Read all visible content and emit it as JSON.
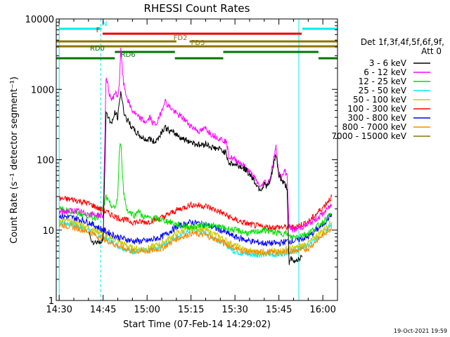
{
  "chart_data": {
    "type": "line",
    "title": "RHESSI Count Rates",
    "xlabel": "Start Time (07-Feb-14 14:29:02)",
    "ylabel": "Count Rate (s⁻¹ detector segment⁻¹)",
    "yscale": "log",
    "ylim": [
      1,
      10000
    ],
    "xlim_minutes": [
      -1,
      95
    ],
    "x_ticks": [
      {
        "label": "14:30",
        "minute": 0
      },
      {
        "label": "14:45",
        "minute": 15
      },
      {
        "label": "15:00",
        "minute": 30
      },
      {
        "label": "15:15",
        "minute": 45
      },
      {
        "label": "15:30",
        "minute": 60
      },
      {
        "label": "15:45",
        "minute": 75
      },
      {
        "label": "16:00",
        "minute": 90
      }
    ],
    "y_ticks": [
      {
        "label": "1",
        "value": 1
      },
      {
        "label": "10",
        "value": 10
      },
      {
        "label": "100",
        "value": 100
      },
      {
        "label": "1000",
        "value": 1000
      },
      {
        "label": "10000",
        "value": 10000
      }
    ],
    "legend_title_1": "Det 1f,3f,4f,5f,6f,9f,",
    "legend_title_2": "Att 0",
    "series": [
      {
        "name": "3 - 6 keV",
        "color": "#000000",
        "minutes": [
          10.3,
          11,
          12,
          13,
          14,
          15,
          15.6,
          16,
          17,
          18,
          19,
          20,
          20.5,
          21,
          22,
          23,
          24,
          25,
          26,
          27,
          28,
          29,
          30,
          31,
          32,
          33,
          34,
          35,
          36,
          37,
          38,
          40,
          42,
          45,
          48,
          50,
          52,
          55,
          57,
          58,
          60,
          62,
          64,
          66,
          68,
          69,
          70,
          71,
          72,
          74,
          75,
          76,
          77,
          77.8,
          78.5,
          79,
          80,
          81,
          82,
          83
        ],
        "values": [
          9,
          7.5,
          6.5,
          7,
          6.5,
          8,
          80,
          500,
          380,
          320,
          470,
          400,
          600,
          950,
          500,
          380,
          330,
          280,
          250,
          230,
          210,
          200,
          190,
          200,
          180,
          185,
          210,
          250,
          290,
          270,
          250,
          230,
          200,
          180,
          160,
          170,
          150,
          140,
          125,
          90,
          85,
          80,
          70,
          55,
          40,
          38,
          45,
          42,
          48,
          120,
          60,
          50,
          45,
          40,
          3,
          4,
          3.5,
          3.8,
          4,
          4.2
        ]
      },
      {
        "name": "6 - 12 keV",
        "color": "#ff00ff",
        "minutes": [
          0,
          5,
          10,
          15,
          15.6,
          16,
          17,
          18,
          19,
          20,
          20.5,
          21,
          22,
          23,
          24,
          25,
          26,
          27,
          28,
          29,
          30,
          31,
          32,
          33,
          34,
          35,
          36,
          37,
          38,
          40,
          42,
          45,
          48,
          50,
          52,
          55,
          57,
          58,
          60,
          62,
          64,
          66,
          68,
          69,
          70,
          71,
          72,
          74,
          75,
          76,
          77,
          77.8,
          78.5,
          80,
          85,
          90,
          93
        ],
        "values": [
          18,
          19,
          17,
          16,
          200,
          1500,
          900,
          700,
          900,
          800,
          1200,
          3500,
          1200,
          800,
          600,
          500,
          450,
          400,
          380,
          350,
          350,
          400,
          330,
          320,
          380,
          500,
          700,
          600,
          550,
          450,
          400,
          300,
          250,
          280,
          230,
          200,
          180,
          110,
          100,
          90,
          75,
          60,
          45,
          40,
          50,
          45,
          55,
          150,
          65,
          55,
          70,
          60,
          11,
          10,
          12,
          17,
          23
        ]
      },
      {
        "name": "12 - 25 keV",
        "color": "#00dd00",
        "minutes": [
          0,
          5,
          10,
          12,
          14,
          15.6,
          16,
          17,
          18,
          19,
          20,
          20.5,
          21,
          22,
          23,
          24,
          25,
          26,
          27,
          28,
          30,
          32,
          35,
          38,
          40,
          45,
          50,
          55,
          60,
          65,
          70,
          75,
          77.8,
          78.5,
          80,
          85,
          90,
          93
        ],
        "values": [
          20,
          18,
          16,
          15,
          16,
          25,
          30,
          24,
          22,
          20,
          30,
          120,
          180,
          35,
          20,
          18,
          17,
          16,
          20,
          16,
          15,
          15,
          14,
          13,
          12,
          11,
          12,
          11,
          10,
          9,
          10,
          9,
          9,
          8,
          8,
          9,
          13,
          17
        ]
      },
      {
        "name": "25 - 50 keV",
        "color": "#00eeee",
        "minutes": [
          0,
          5,
          10,
          15,
          20,
          25,
          30,
          35,
          40,
          45,
          50,
          55,
          60,
          65,
          70,
          75,
          78,
          80,
          85,
          90,
          93
        ],
        "values": [
          13,
          12,
          10,
          8,
          6,
          5,
          5,
          6,
          8,
          10,
          9,
          7,
          5,
          4.5,
          4.5,
          4.5,
          5,
          5,
          6,
          9,
          12
        ]
      },
      {
        "name": "50 - 100 keV",
        "color": "#cccc00",
        "minutes": [
          0,
          5,
          10,
          15,
          20,
          25,
          30,
          35,
          40,
          45,
          50,
          55,
          60,
          65,
          70,
          75,
          78,
          80,
          85,
          90,
          93
        ],
        "values": [
          14,
          13,
          11,
          9,
          7,
          5.5,
          5.5,
          6.5,
          9,
          11,
          10,
          8,
          6,
          5,
          5,
          5,
          5.5,
          5.5,
          6.5,
          10,
          13
        ]
      },
      {
        "name": "100 - 300 keV",
        "color": "#ff0000",
        "minutes": [
          0,
          5,
          10,
          15,
          20,
          25,
          30,
          35,
          40,
          45,
          50,
          55,
          60,
          65,
          70,
          75,
          78,
          80,
          85,
          90,
          93
        ],
        "values": [
          28,
          27,
          24,
          19,
          15,
          13,
          13,
          15,
          19,
          23,
          22,
          18,
          14,
          12,
          11,
          11,
          11,
          11,
          13,
          21,
          30
        ]
      },
      {
        "name": "300 - 800 keV",
        "color": "#0000ff",
        "minutes": [
          0,
          5,
          10,
          15,
          20,
          25,
          30,
          35,
          40,
          45,
          50,
          55,
          60,
          65,
          70,
          75,
          78,
          80,
          85,
          90,
          93
        ],
        "values": [
          16,
          15,
          13,
          10,
          8,
          7,
          7,
          8,
          11,
          13,
          12,
          10,
          8,
          7,
          6.5,
          6.5,
          7,
          7,
          8,
          12,
          17
        ]
      },
      {
        "name": "800 - 7000 keV",
        "color": "#ff8800",
        "minutes": [
          0,
          5,
          10,
          15,
          20,
          25,
          30,
          35,
          40,
          45,
          50,
          55,
          60,
          65,
          70,
          75,
          78,
          80,
          85,
          90,
          93
        ],
        "values": [
          12,
          11,
          9.5,
          7.5,
          6,
          5,
          5,
          5.5,
          7.5,
          9,
          8.5,
          7,
          5.5,
          4.8,
          4.8,
          4.8,
          5,
          5,
          5.5,
          8.5,
          11
        ]
      },
      {
        "name": "7000 - 15000 keV",
        "color": "#8b7500",
        "minutes": [],
        "values": []
      }
    ],
    "attenuator_flags": [
      {
        "label": "N",
        "color": "#00eeee",
        "segments": [
          [
            0,
            14.5
          ],
          [
            83,
            95
          ]
        ]
      },
      {
        "label": "F",
        "color": "#ee0000",
        "segments": [
          [
            14.8,
            82.8
          ]
        ]
      },
      {
        "label": "FD2",
        "color": "#8b7500",
        "segments": [
          [
            -1,
            40
          ],
          [
            44.5,
            95
          ]
        ]
      },
      {
        "label": "FD3",
        "color": "#8b7500",
        "segments": [
          [
            -1,
            95
          ]
        ]
      },
      {
        "label": "RD0",
        "color": "#007700",
        "segments": [
          [
            19,
            39.5
          ],
          [
            56,
            88.5
          ]
        ]
      },
      {
        "label": "RD6",
        "color": "#007700",
        "segments": [
          [
            -1,
            19
          ],
          [
            39.5,
            56
          ],
          [
            88.5,
            95
          ]
        ]
      }
    ],
    "vertical_markers": [
      {
        "minute": 0,
        "style": "solid"
      },
      {
        "minute": 14.2,
        "style": "dashed"
      },
      {
        "minute": 81.8,
        "style": "solid"
      },
      {
        "minute": 95,
        "style": "dashed"
      }
    ]
  },
  "footer": {
    "date_stamp": "19-Oct-2021 19:59"
  }
}
